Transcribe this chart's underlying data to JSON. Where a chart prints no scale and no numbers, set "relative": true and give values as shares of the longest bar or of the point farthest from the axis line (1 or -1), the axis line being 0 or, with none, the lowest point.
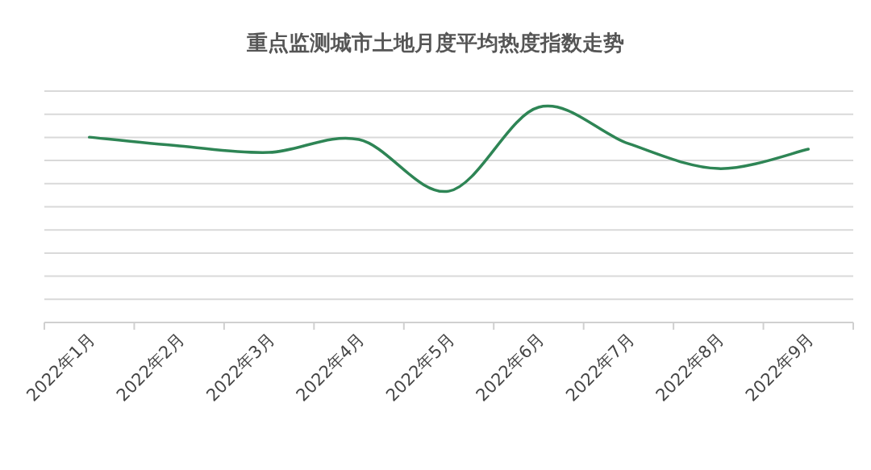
{
  "chart_data": {
    "type": "line",
    "title": "重点监测城市土地月度平均热度指数走势",
    "relative": true,
    "grid": "y",
    "marker": "none",
    "line_style": "solid",
    "categories": [
      "2022年1月",
      "2022年2月",
      "2022年3月",
      "2022年4月",
      "2022年5月",
      "2022年6月",
      "2022年7月",
      "2022年8月",
      "2022年9月"
    ],
    "series": [
      {
        "color": "#2e8555",
        "values": [
          0.861,
          0.82,
          0.79,
          0.85,
          0.61,
          1,
          0.831,
          0.715,
          0.805
        ]
      }
    ]
  }
}
